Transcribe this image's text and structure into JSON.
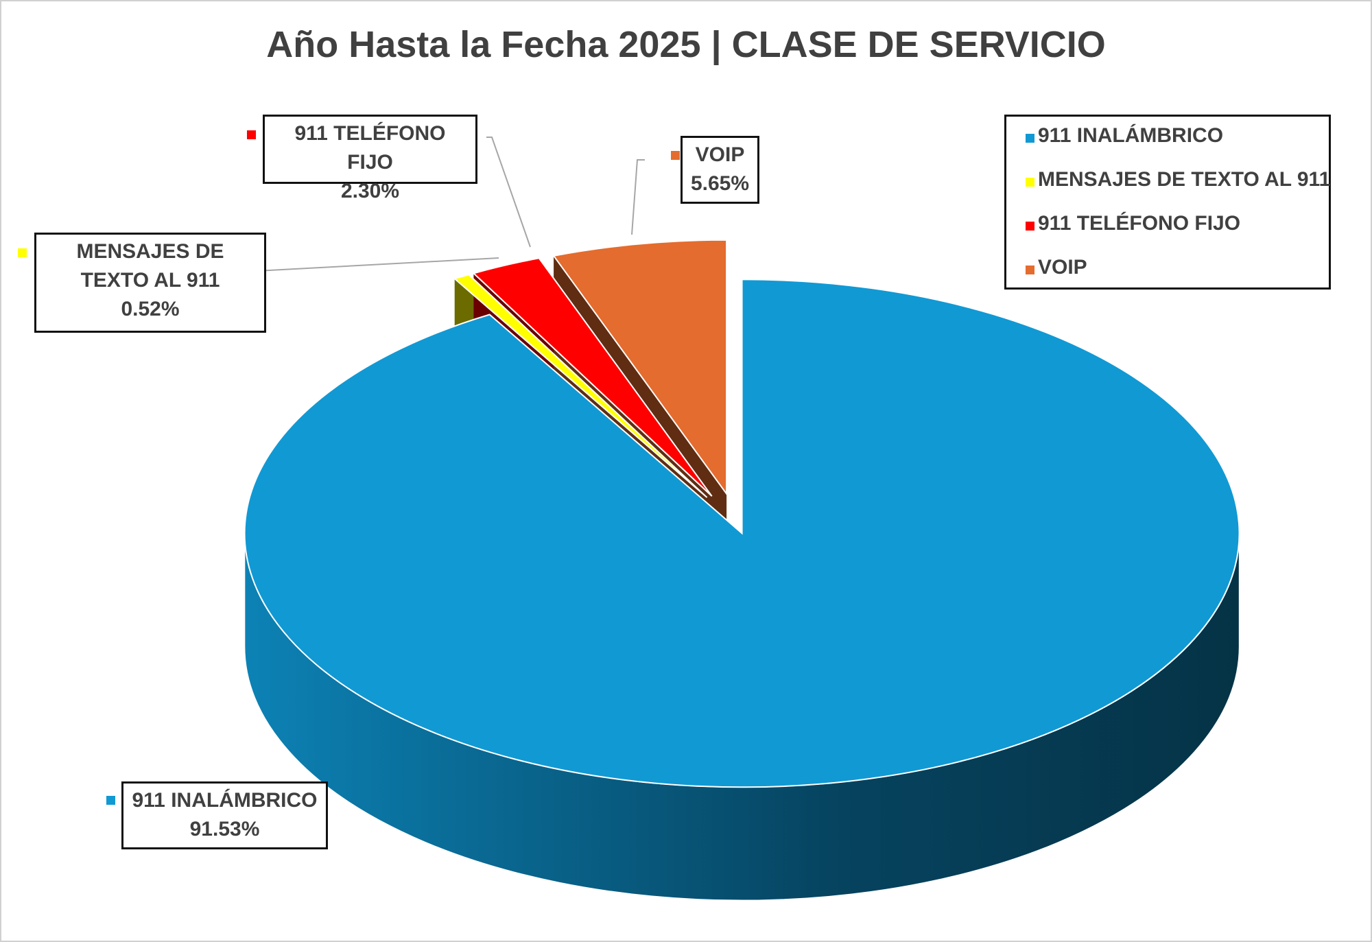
{
  "chart_data": {
    "type": "pie3d",
    "title": "Año Hasta la Fecha 2025 | CLASE DE SERVICIO",
    "categories": [
      "911 INALÁMBRICO",
      "MENSAJES DE TEXTO AL 911",
      "911 TELÉFONO FIJO",
      "VOIP"
    ],
    "values": [
      91.53,
      0.52,
      2.3,
      5.65
    ],
    "value_labels": [
      "91.53%",
      "0.52%",
      "2.30%",
      "5.65%"
    ],
    "colors": [
      "#1199d4",
      "#ffff00",
      "#ff0000",
      "#e46c2e"
    ],
    "legend": "top-right"
  }
}
